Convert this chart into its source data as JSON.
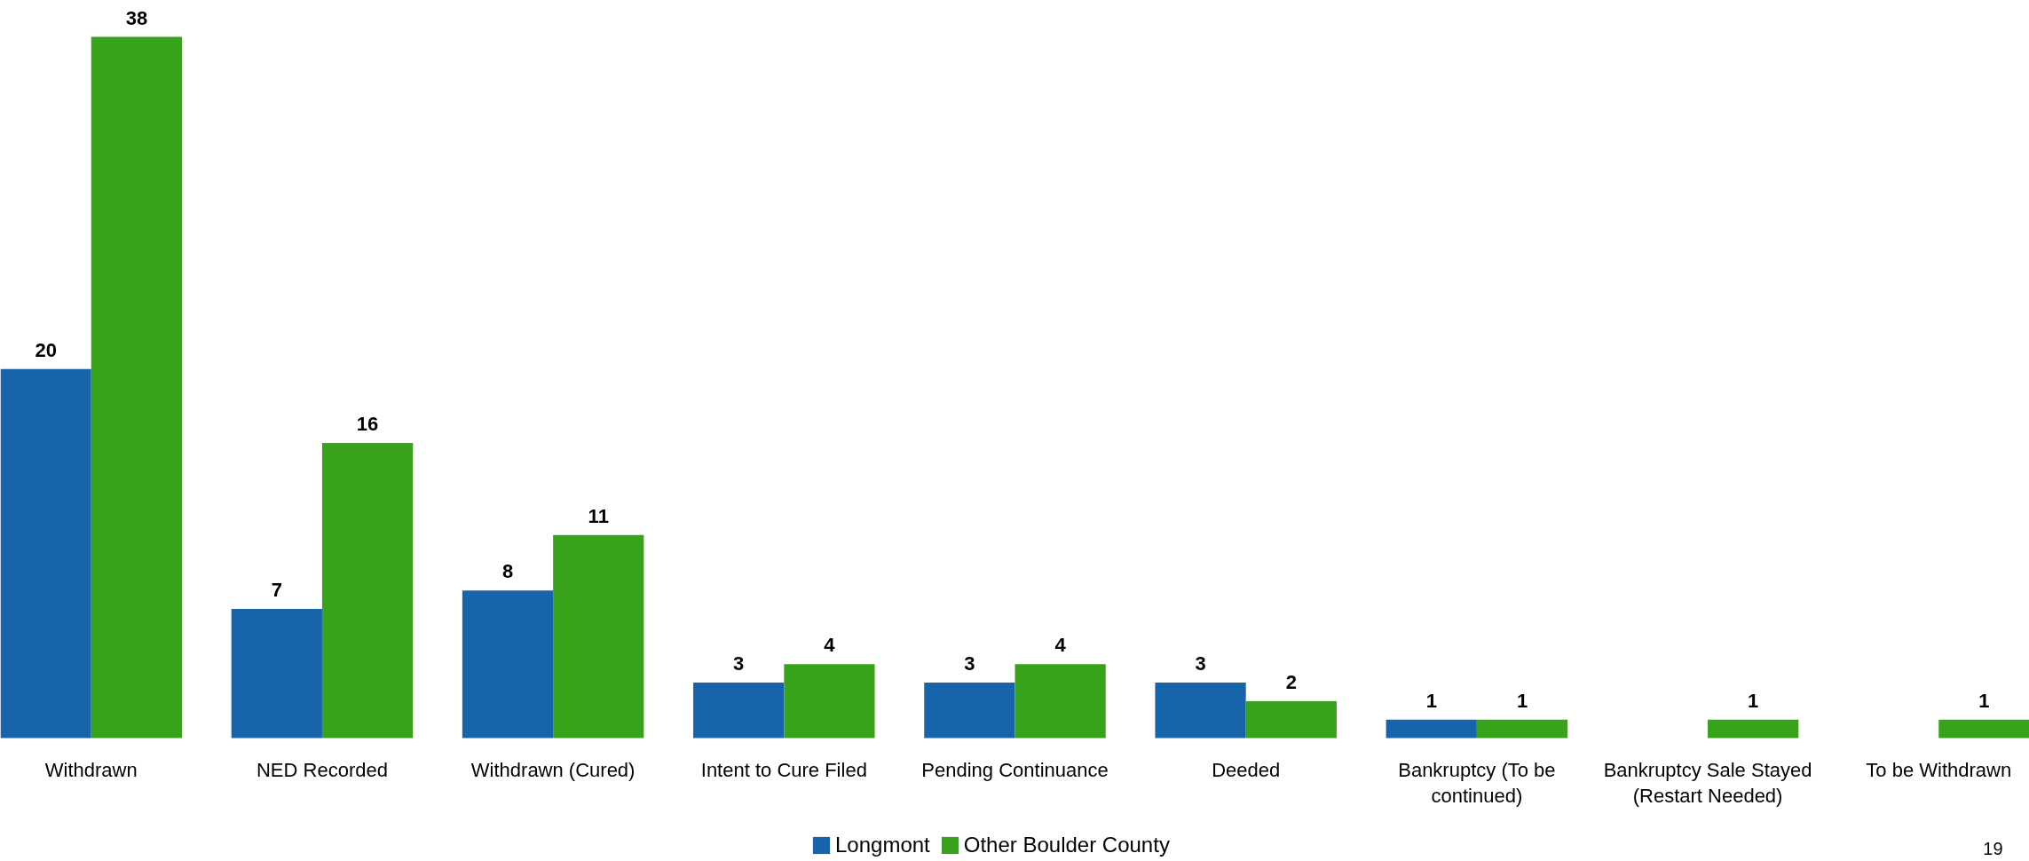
{
  "chart_data": {
    "type": "bar",
    "categories": [
      "Withdrawn",
      "NED Recorded",
      "Withdrawn (Cured)",
      "Intent to Cure Filed",
      "Pending Continuance",
      "Deeded",
      "Bankruptcy (To be continued)",
      "Bankruptcy Sale Stayed (Restart Needed)",
      "To be Withdrawn"
    ],
    "series": [
      {
        "name": "Longmont",
        "color": "#1764ab",
        "values": [
          20,
          7,
          8,
          3,
          3,
          3,
          1,
          null,
          null
        ]
      },
      {
        "name": "Other Boulder County",
        "color": "#38a31a",
        "values": [
          38,
          16,
          11,
          4,
          4,
          2,
          1,
          1,
          1
        ]
      }
    ],
    "data_labels": true,
    "grid": false,
    "legend": "bottom",
    "annotations": [
      "19"
    ]
  }
}
